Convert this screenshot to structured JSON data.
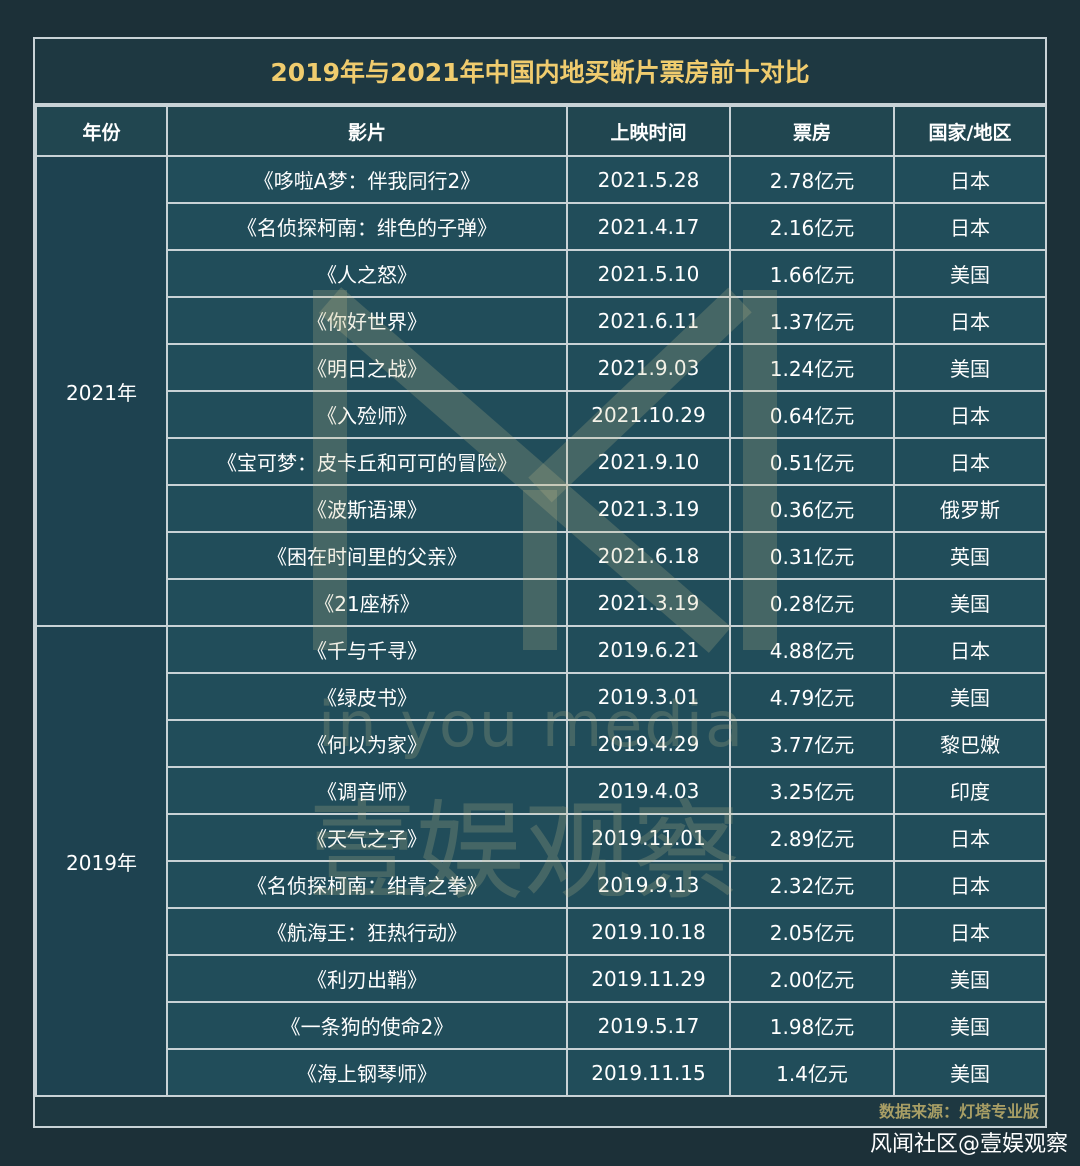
{
  "title": "2019年与2021年中国内地买断片票房前十对比",
  "headers": [
    "年份",
    "影片",
    "上映时间",
    "票房",
    "国家/地区"
  ],
  "groups": [
    {
      "year": "2021年",
      "rows": [
        [
          "《哆啦A梦：伴我同行2》",
          "2021.5.28",
          "2.78亿元",
          "日本"
        ],
        [
          "《名侦探柯南：绯色的子弹》",
          "2021.4.17",
          "2.16亿元",
          "日本"
        ],
        [
          "《人之怒》",
          "2021.5.10",
          "1.66亿元",
          "美国"
        ],
        [
          "《你好世界》",
          "2021.6.11",
          "1.37亿元",
          "日本"
        ],
        [
          "《明日之战》",
          "2021.9.03",
          "1.24亿元",
          "美国"
        ],
        [
          "《入殓师》",
          "2021.10.29",
          "0.64亿元",
          "日本"
        ],
        [
          "《宝可梦：皮卡丘和可可的冒险》",
          "2021.9.10",
          "0.51亿元",
          "日本"
        ],
        [
          "《波斯语课》",
          "2021.3.19",
          "0.36亿元",
          "俄罗斯"
        ],
        [
          "《困在时间里的父亲》",
          "2021.6.18",
          "0.31亿元",
          "英国"
        ],
        [
          "《21座桥》",
          "2021.3.19",
          "0.28亿元",
          "美国"
        ]
      ]
    },
    {
      "year": "2019年",
      "rows": [
        [
          "《千与千寻》",
          "2019.6.21",
          "4.88亿元",
          "日本"
        ],
        [
          "《绿皮书》",
          "2019.3.01",
          "4.79亿元",
          "美国"
        ],
        [
          "《何以为家》",
          "2019.4.29",
          "3.77亿元",
          "黎巴嫩"
        ],
        [
          "《调音师》",
          "2019.4.03",
          "3.25亿元",
          "印度"
        ],
        [
          "《天气之子》",
          "2019.11.01",
          "2.89亿元",
          "日本"
        ],
        [
          "《名侦探柯南：绀青之拳》",
          "2019.9.13",
          "2.32亿元",
          "日本"
        ],
        [
          "《航海王：狂热行动》",
          "2019.10.18",
          "2.05亿元",
          "日本"
        ],
        [
          "《利刃出鞘》",
          "2019.11.29",
          "2.00亿元",
          "美国"
        ],
        [
          "《一条狗的使命2》",
          "2019.5.17",
          "1.98亿元",
          "美国"
        ],
        [
          "《海上钢琴师》",
          "2019.11.15",
          "1.4亿元",
          "美国"
        ]
      ]
    }
  ],
  "source": "数据来源：灯塔专业版",
  "watermark": {
    "line1": "in you media",
    "line2": "壹娱观察"
  },
  "footer": "风闻社区@壹娱观察",
  "colors": {
    "background": "#1c3038",
    "title": "#f0cc6e",
    "cell": "#214d5a",
    "border": "#c8d2d6",
    "source": "#a89e65"
  }
}
